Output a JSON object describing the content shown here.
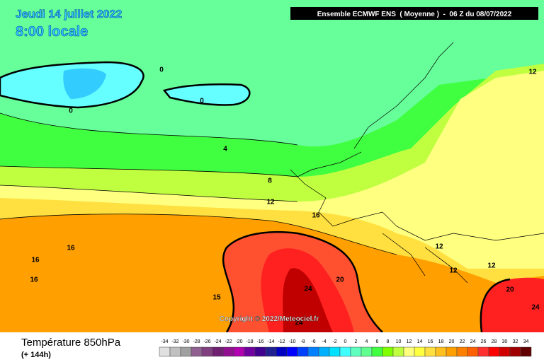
{
  "header": {
    "date": "Jeudi 14 juillet 2022",
    "time": "8:00 locale",
    "model": "Ensemble ECMWF ENS  ( Moyenne )  -  06 Z du 08/07/2022"
  },
  "copyright": "Copyright © 2022/Meteociel.fr",
  "footer": {
    "title": "Température 850hPa",
    "lead": "(+ 144h)"
  },
  "contour_labels": [
    "0",
    "0",
    "0",
    "4",
    "8",
    "12",
    "16",
    "16",
    "16",
    "16",
    "12",
    "12",
    "12",
    "12",
    "20",
    "24",
    "24",
    "20",
    "24",
    "15"
  ],
  "legend": [
    {
      "label": "-34",
      "color": "#e0e0e0"
    },
    {
      "label": "-32",
      "color": "#c0c0c0"
    },
    {
      "label": "-30",
      "color": "#a0a0a0"
    },
    {
      "label": "-28",
      "color": "#906090"
    },
    {
      "label": "-26",
      "color": "#804080"
    },
    {
      "label": "-24",
      "color": "#702070"
    },
    {
      "label": "-22",
      "color": "#901090"
    },
    {
      "label": "-20",
      "color": "#b000b0"
    },
    {
      "label": "-18",
      "color": "#7000a0"
    },
    {
      "label": "-16",
      "color": "#400090"
    },
    {
      "label": "-14",
      "color": "#202090"
    },
    {
      "label": "-12",
      "color": "#0000c0"
    },
    {
      "label": "-10",
      "color": "#0000ff"
    },
    {
      "label": "-8",
      "color": "#0040ff"
    },
    {
      "label": "-6",
      "color": "#0080ff"
    },
    {
      "label": "-4",
      "color": "#00b0ff"
    },
    {
      "label": "-2",
      "color": "#00e0ff"
    },
    {
      "label": "0",
      "color": "#40ffff"
    },
    {
      "label": "2",
      "color": "#60ffc0"
    },
    {
      "label": "4",
      "color": "#60ff90"
    },
    {
      "label": "6",
      "color": "#40ff40"
    },
    {
      "label": "8",
      "color": "#80ff00"
    },
    {
      "label": "10",
      "color": "#c0ff40"
    },
    {
      "label": "12",
      "color": "#ffff80"
    },
    {
      "label": "14",
      "color": "#ffff40"
    },
    {
      "label": "16",
      "color": "#ffe040"
    },
    {
      "label": "18",
      "color": "#ffc020"
    },
    {
      "label": "20",
      "color": "#ffa000"
    },
    {
      "label": "22",
      "color": "#ff8000"
    },
    {
      "label": "24",
      "color": "#ff6000"
    },
    {
      "label": "26",
      "color": "#ff3030"
    },
    {
      "label": "28",
      "color": "#ff0000"
    },
    {
      "label": "30",
      "color": "#d00000"
    },
    {
      "label": "32",
      "color": "#a00000"
    },
    {
      "label": "34",
      "color": "#600000"
    }
  ]
}
